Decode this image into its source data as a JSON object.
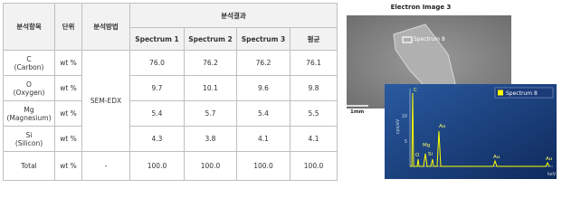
{
  "table": {
    "header": [
      "분석항목",
      "단위",
      "분석방법",
      "분석결과"
    ],
    "subheader": [
      "Spectrum 1",
      "Spectrum 2",
      "Spectrum 3",
      "평균"
    ],
    "method": "SEM-EDX",
    "rows": [
      {
        "item": [
          "C",
          "(Carbon)"
        ],
        "unit": "wt %",
        "values": [
          "76.0",
          "76.2",
          "76.2",
          "76.1"
        ]
      },
      {
        "item": [
          "O",
          "(Oxygen)"
        ],
        "unit": "wt %",
        "values": [
          "9.7",
          "10.1",
          "9.6",
          "9.8"
        ]
      },
      {
        "item": [
          "Mg",
          "(Magnesium)"
        ],
        "unit": "wt %",
        "values": [
          "5.4",
          "5.7",
          "5.4",
          "5.5"
        ]
      },
      {
        "item": [
          "Si",
          "(Silicon)"
        ],
        "unit": "wt %",
        "values": [
          "4.3",
          "3.8",
          "4.1",
          "4.1"
        ]
      }
    ],
    "total": {
      "item": "Total",
      "unit": "wt %",
      "method": "-",
      "values": [
        "100.0",
        "100.0",
        "100.0",
        "100.0"
      ]
    }
  },
  "image": {
    "title": "Electron Image 3",
    "region_label": "Spectrum 8",
    "scale": "1mm"
  },
  "spectrum": {
    "legend": "Spectrum 8",
    "y_label": "cps/eV",
    "y_ticks": [
      "10",
      "5"
    ],
    "x_label": "keV",
    "peaks": [
      "C",
      "O",
      "Mg",
      "Si",
      "Au",
      "Au",
      "Au"
    ]
  }
}
